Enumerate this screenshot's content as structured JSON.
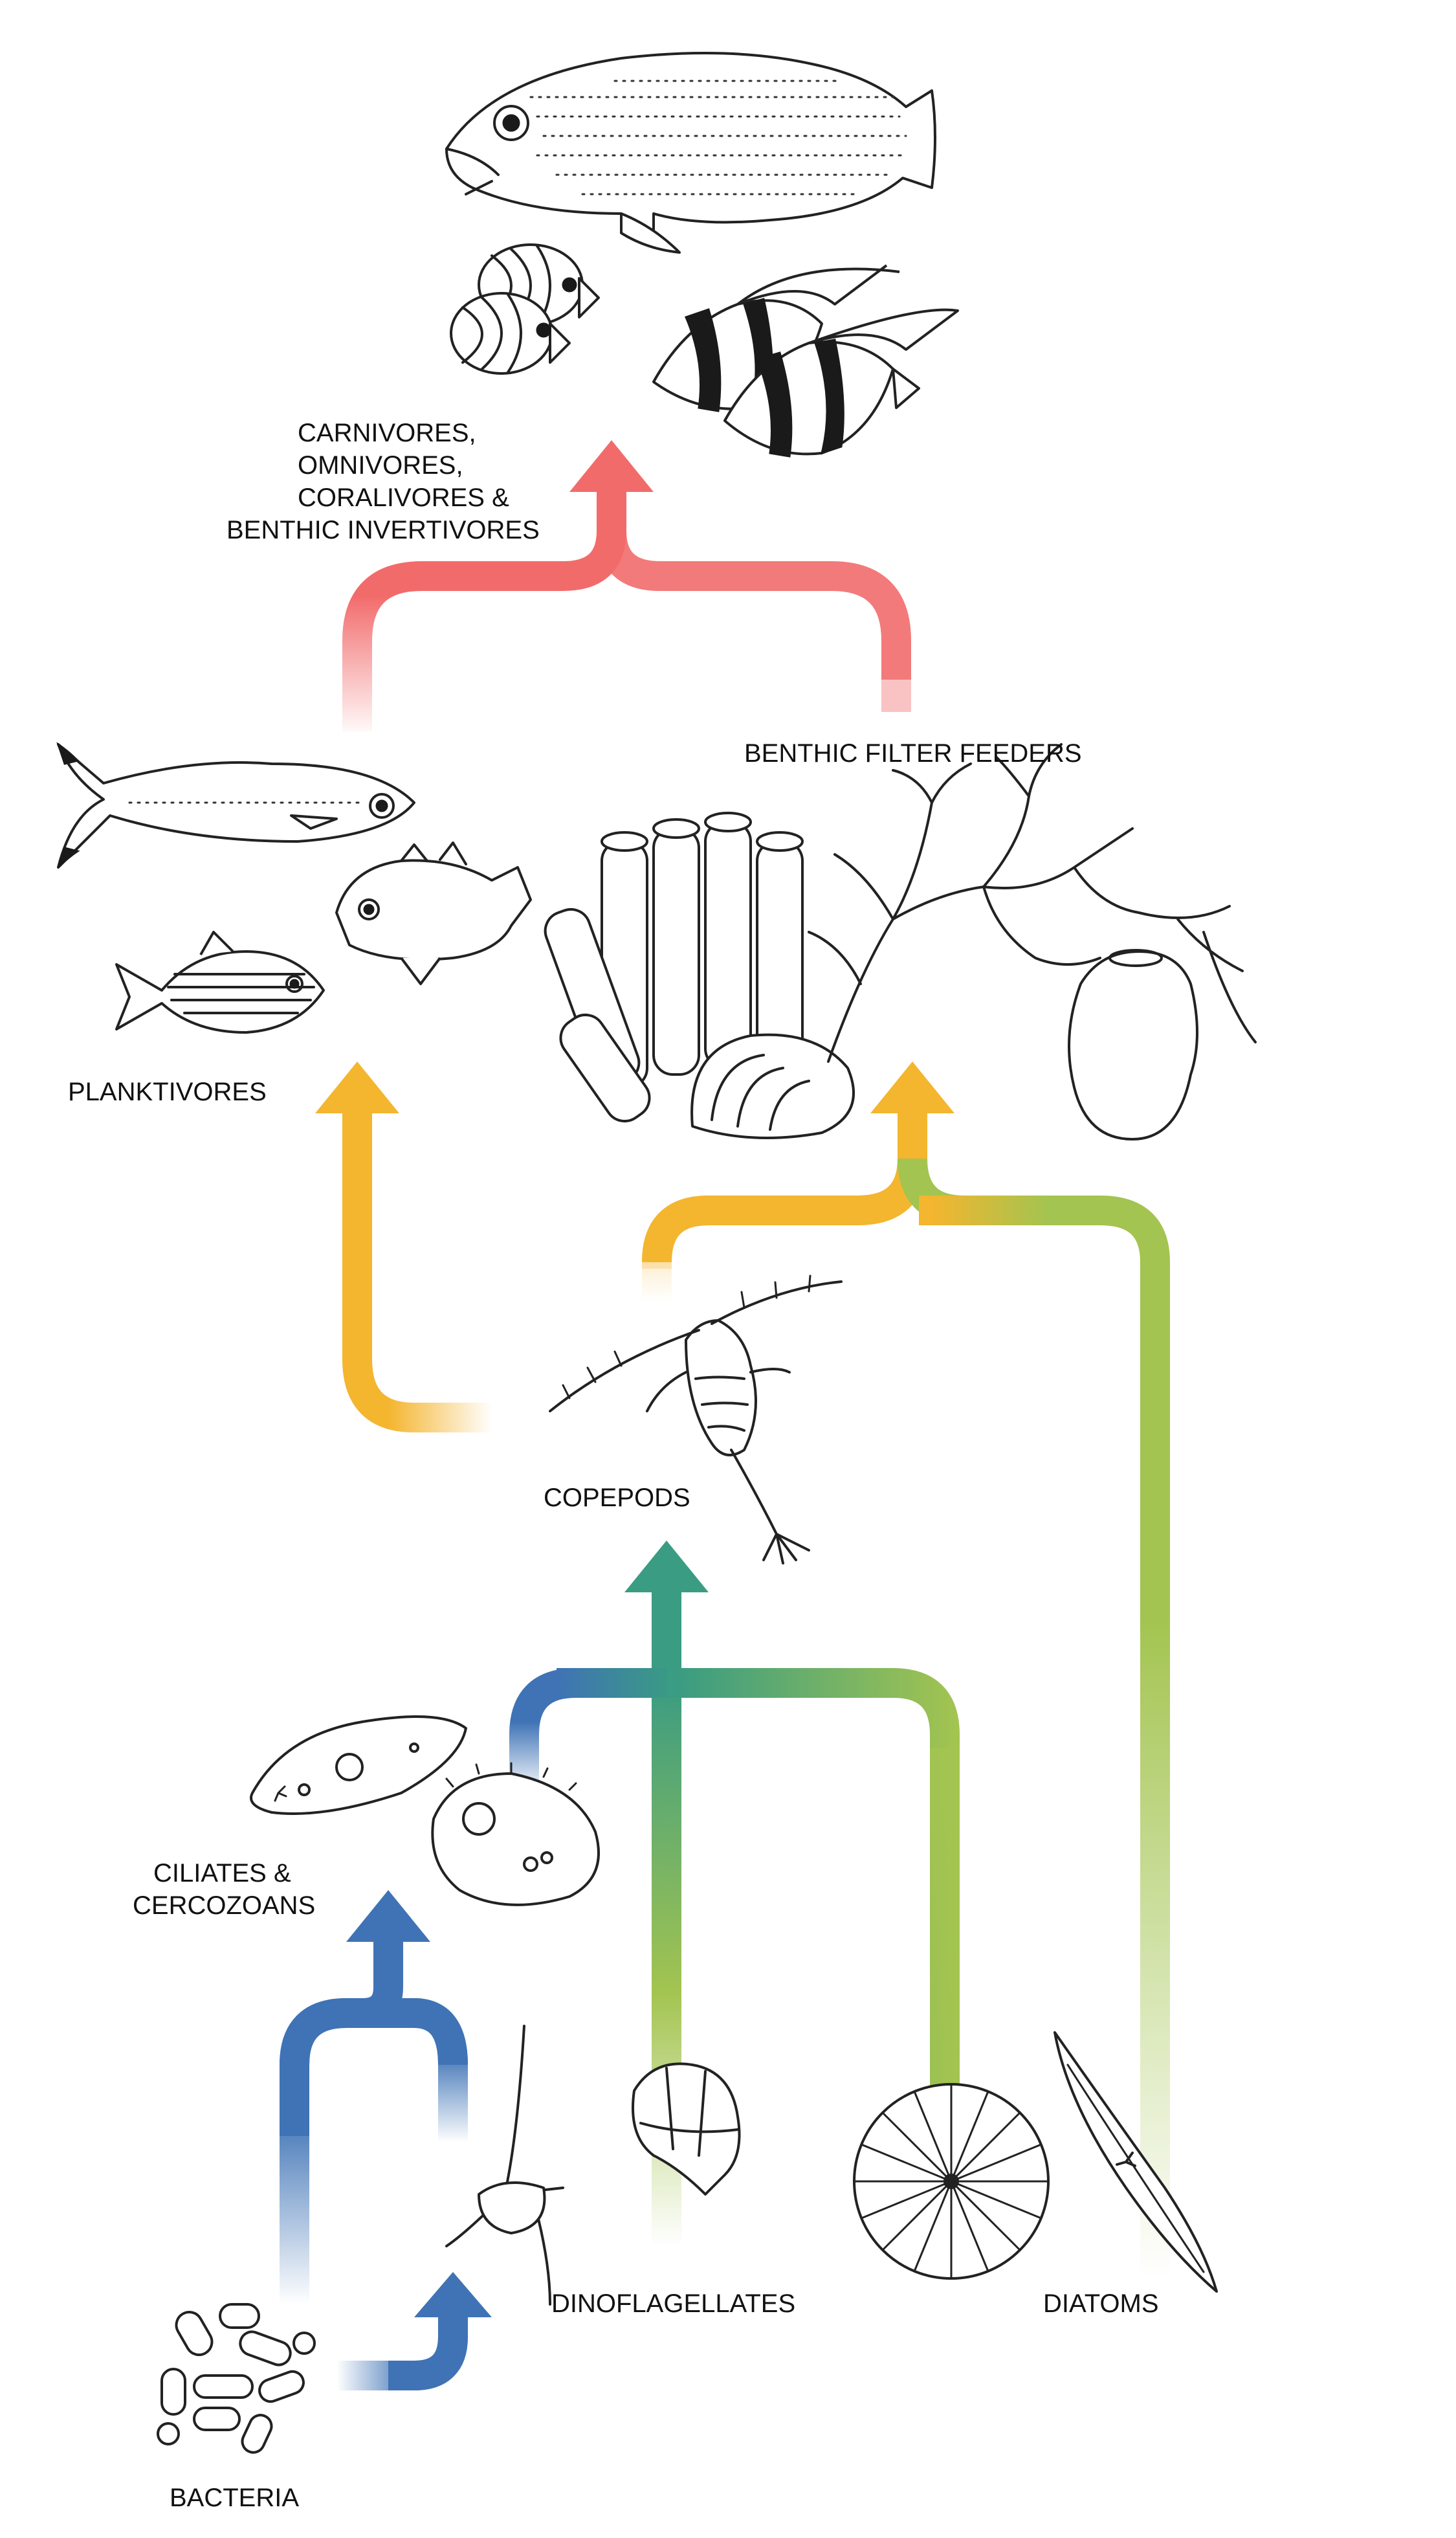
{
  "labels": {
    "carnivores_line1": "CARNIVORES,",
    "carnivores_line2": "OMNIVORES,",
    "carnivores_line3": "CORALIVORES &",
    "carnivores_line4": "BENTHIC INVERTIVORES",
    "benthic_filter_feeders": "BENTHIC FILTER FEEDERS",
    "planktivores": "PLANKTIVORES",
    "copepods": "COPEPODS",
    "ciliates_line1": "CILIATES &",
    "ciliates_line2": "CERCOZOANS",
    "dinoflagellates": "DINOFLAGELLATES",
    "diatoms": "DIATOMS",
    "bacteria": "BACTERIA"
  },
  "colors": {
    "carnivore_arrow": "#f26b6b",
    "planktivore_arrow": "#f4b52f",
    "copepod_arrow": "#3a9c82",
    "diatom_arrow": "#a3c450",
    "bacteria_arrow": "#3f73b5"
  },
  "icons": [
    "grouper-icon",
    "butterflyfish-icon",
    "moorish-idol-icon",
    "fusilier-icon",
    "damselfish-icon",
    "cardinalfish-icon",
    "tube-sponge-icon",
    "clam-icon",
    "branching-coral-icon",
    "vase-sponge-icon",
    "copepod-icon",
    "ciliate-icon",
    "cercozoan-icon",
    "dinoflagellate-ceratium-icon",
    "dinoflagellate-protoperidinium-icon",
    "centric-diatom-icon",
    "pennate-diatom-icon",
    "bacteria-icon"
  ]
}
